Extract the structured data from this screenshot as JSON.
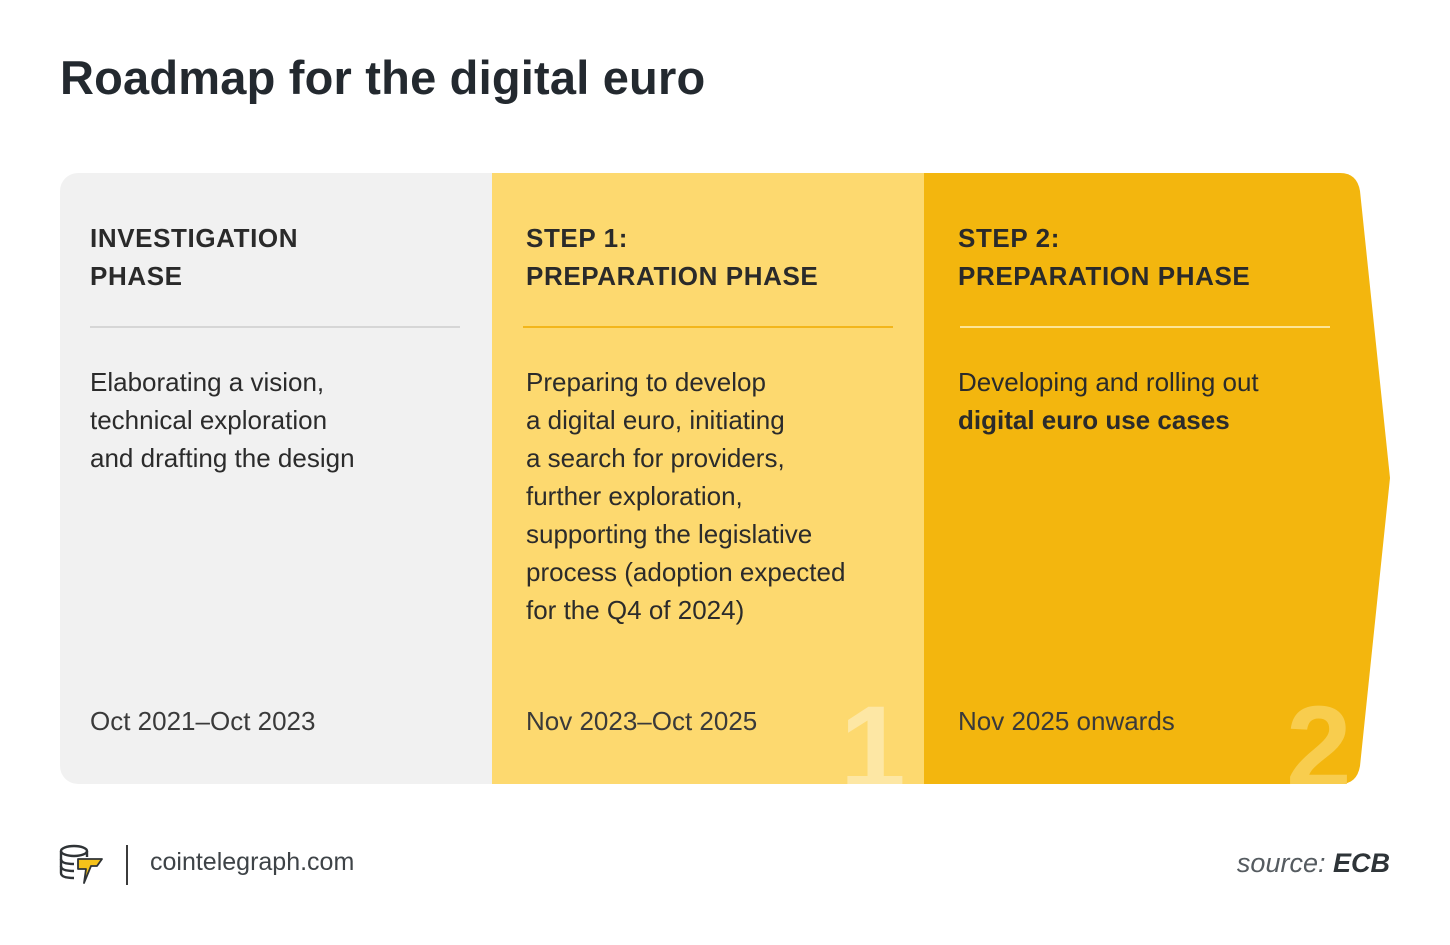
{
  "title": "Roadmap for the digital euro",
  "colors": {
    "investigation": "#f1f1f1",
    "step1": "#fdd96f",
    "step2": "#f3b60e",
    "text": "#26292d"
  },
  "phases": [
    {
      "heading": [
        "INVESTIGATION",
        "PHASE"
      ],
      "description": [
        "Elaborating a vision,",
        "technical exploration",
        "and drafting the design"
      ],
      "period": "Oct 2021–Oct 2023"
    },
    {
      "heading": [
        "STEP 1:",
        "PREPARATION PHASE"
      ],
      "description": [
        "Preparing to develop",
        "a digital euro, initiating",
        "a search for providers,",
        "further exploration,",
        "supporting the legislative",
        "process (adoption expected",
        "for the Q4 of 2024)"
      ],
      "period": "Nov 2023–Oct 2025",
      "number": "1"
    },
    {
      "heading": [
        "STEP 2:",
        "PREPARATION PHASE"
      ],
      "description": [
        "Developing and rolling out",
        "digital euro use cases"
      ],
      "period": "Nov 2025 onwards",
      "number": "2"
    }
  ],
  "footer": {
    "logo_icon": "cointelegraph-logo-icon",
    "site": "cointelegraph.com",
    "source_label": "source:",
    "source_value": "ECB"
  }
}
